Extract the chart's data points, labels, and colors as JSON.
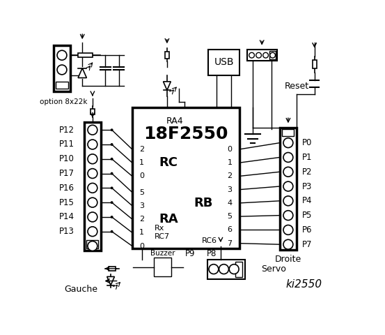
{
  "bg_color": "#ffffff",
  "left_pins": [
    "P12",
    "P11",
    "P10",
    "P17",
    "P16",
    "P15",
    "P14",
    "P13"
  ],
  "left_pin_nums": [
    "2",
    "1",
    "0",
    "5",
    "3",
    "2",
    "1",
    "0"
  ],
  "right_pins": [
    "P0",
    "P1",
    "P2",
    "P3",
    "P4",
    "P5",
    "P6",
    "P7"
  ],
  "right_pin_nums": [
    "0",
    "1",
    "2",
    "3",
    "4",
    "5",
    "6",
    "7"
  ],
  "chip_label": "18F2550",
  "ra4_label": "RA4",
  "rc_label": "RC",
  "ra_label": "RA",
  "rb_label": "RB",
  "rx_label": "Rx",
  "rc7_label": "RC7",
  "rc6_label": "RC6",
  "usb_label": "USB",
  "reset_label": "Reset",
  "gauche_label": "Gauche",
  "droite_label": "Droite",
  "buzzer_label": "Buzzer",
  "p9_label": "P9",
  "p8_label": "P8",
  "servo_label": "Servo",
  "option_label": "option 8x22k",
  "ki_label": "ki2550"
}
